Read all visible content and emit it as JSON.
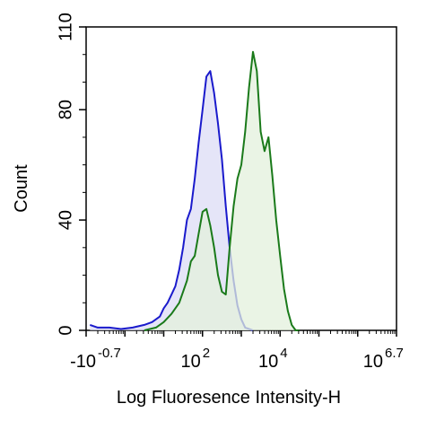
{
  "chart_data": {
    "type": "area",
    "xscale": "log",
    "xlabel": "Log Fluoresence Intensity-H",
    "ylabel": "Count",
    "ylim": [
      0,
      110
    ],
    "grid": false,
    "legend": "none",
    "y_ticks": [
      {
        "value": 0,
        "label": "0"
      },
      {
        "value": 40,
        "label": "40"
      },
      {
        "value": 80,
        "label": "80"
      },
      {
        "value": 110,
        "label": "110"
      }
    ],
    "x_tick_labels": [
      {
        "base": "-10",
        "exp": "-0.7",
        "value": -0.7
      },
      {
        "base": "10",
        "exp": "2",
        "value": 2
      },
      {
        "base": "10",
        "exp": "4",
        "value": 4
      },
      {
        "base": "10",
        "exp": "6.7",
        "value": 6.7
      }
    ],
    "series": [
      {
        "color": "#1a1acc",
        "fill": "#dcdcf5",
        "x": [
          -0.9,
          -0.7,
          -0.4,
          -0.1,
          0.2,
          0.5,
          0.7,
          0.9,
          1.0,
          1.1,
          1.2,
          1.3,
          1.4,
          1.5,
          1.6,
          1.7,
          1.8,
          1.9,
          2.0,
          2.1,
          2.2,
          2.3,
          2.4,
          2.5,
          2.6,
          2.7,
          2.8,
          2.9,
          3.0,
          3.1,
          3.3
        ],
        "y": [
          2,
          1,
          1,
          0.5,
          1,
          2,
          3,
          5,
          8,
          10,
          13,
          16,
          22,
          30,
          40,
          44,
          55,
          68,
          80,
          92,
          94,
          86,
          75,
          62,
          45,
          30,
          18,
          9,
          4,
          1,
          0
        ]
      },
      {
        "color": "#1a7a1a",
        "fill": "#e3f0dc",
        "x": [
          0.5,
          0.8,
          1.0,
          1.2,
          1.4,
          1.6,
          1.7,
          1.8,
          1.9,
          2.0,
          2.1,
          2.2,
          2.3,
          2.4,
          2.5,
          2.6,
          2.7,
          2.8,
          2.9,
          3.0,
          3.1,
          3.2,
          3.3,
          3.4,
          3.5,
          3.6,
          3.7,
          3.8,
          3.9,
          4.0,
          4.1,
          4.2,
          4.3,
          4.4,
          4.5
        ],
        "y": [
          0,
          1,
          3,
          6,
          10,
          18,
          25,
          27,
          35,
          43,
          44,
          38,
          30,
          20,
          14,
          13,
          30,
          45,
          55,
          60,
          72,
          88,
          101,
          94,
          72,
          65,
          70,
          56,
          40,
          27,
          15,
          7,
          2,
          0,
          0
        ]
      }
    ]
  }
}
